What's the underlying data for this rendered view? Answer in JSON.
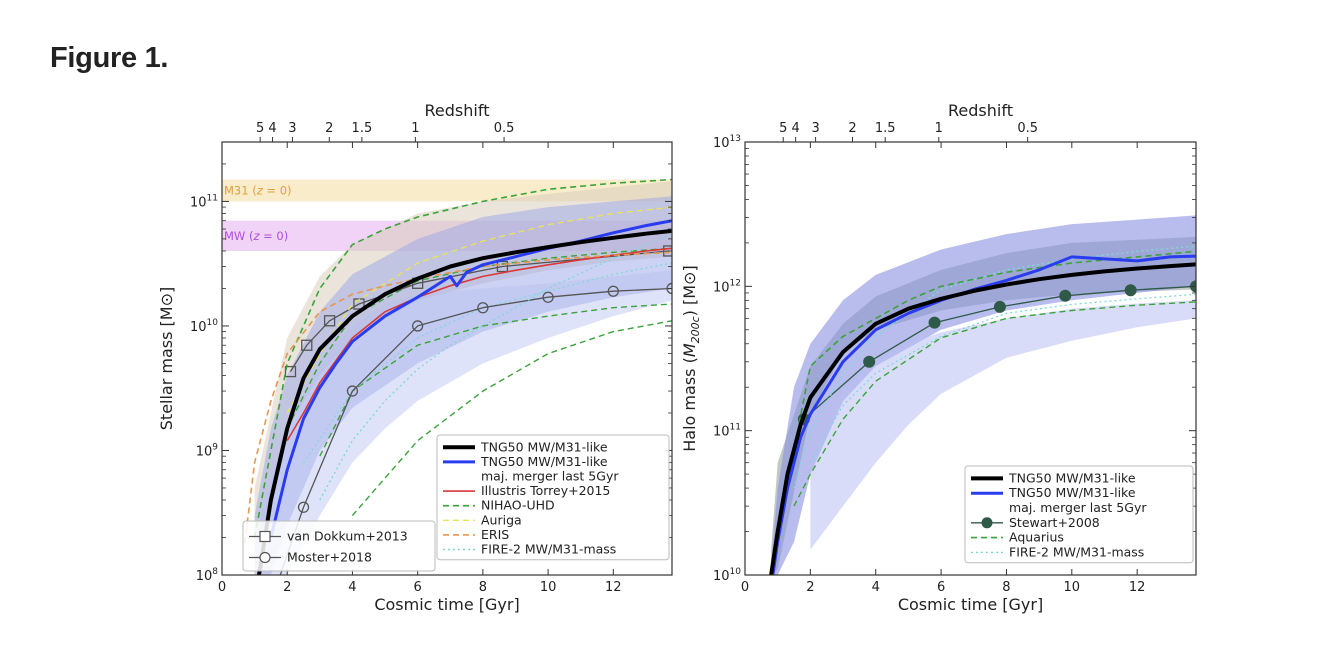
{
  "figure_label": "Figure 1.",
  "chart_data": [
    {
      "type": "line",
      "xlabel": "Cosmic time [Gyr]",
      "ylabel": "Stellar mass [M⊙]",
      "top_axis_label": "Redshift",
      "xlim": [
        0,
        13.8
      ],
      "ylim": [
        100000000.0,
        300000000000.0
      ],
      "yscale": "log",
      "x_ticks": [
        "0",
        "2",
        "4",
        "6",
        "8",
        "10",
        "12"
      ],
      "y_ticks": [
        {
          "mant": "10",
          "exp": "8"
        },
        {
          "mant": "10",
          "exp": "9"
        },
        {
          "mant": "10",
          "exp": "10"
        },
        {
          "mant": "10",
          "exp": "11"
        }
      ],
      "top_ticks": [
        "5",
        "4",
        "3",
        "2",
        "1.5",
        "1",
        "0.5"
      ],
      "bands": [
        {
          "label": "M31 (z = 0)",
          "label_main": "M31 (",
          "label_it": "z",
          "label_end": " = 0)",
          "y_range": [
            100000000000.0,
            150000000000.0
          ],
          "color": "#f5dfa6",
          "text_color": "#e0a040"
        },
        {
          "label": "MW (z = 0)",
          "label_main": "MW (",
          "label_it": "z",
          "label_end": " = 0)",
          "y_range": [
            40000000000.0,
            70000000000.0
          ],
          "color": "#e6b6f2",
          "text_color": "#b04ed8"
        }
      ],
      "series": [
        {
          "name": "TNG50 MW/M31-like",
          "color": "#000000",
          "style": "solid",
          "width": 4,
          "x": [
            1.0,
            1.5,
            2.0,
            2.5,
            3.0,
            4.0,
            5.0,
            6.0,
            7.0,
            8.0,
            9.0,
            10.0,
            11.0,
            12.0,
            13.0,
            13.8
          ],
          "y": [
            60000000.0,
            400000000.0,
            1500000000.0,
            3800000000.0,
            6500000000.0,
            12000000000.0,
            18000000000.0,
            24000000000.0,
            30000000000.0,
            35000000000.0,
            39000000000.0,
            43000000000.0,
            47000000000.0,
            51000000000.0,
            55000000000.0,
            58000000000.0
          ]
        },
        {
          "name": "TNG50 MW/M31-like maj. merger last 5Gyr",
          "color": "#2a3cf0",
          "style": "solid",
          "width": 3,
          "x": [
            1.5,
            2.0,
            2.5,
            3.0,
            3.5,
            4.0,
            5.0,
            6.0,
            7.0,
            7.2,
            7.5,
            8.0,
            9.0,
            10.0,
            11.0,
            12.0,
            13.0,
            13.8
          ],
          "y": [
            200000000.0,
            700000000.0,
            1800000000.0,
            3200000000.0,
            5000000000.0,
            7500000000.0,
            12000000000.0,
            17000000000.0,
            25000000000.0,
            21000000000.0,
            27000000000.0,
            31000000000.0,
            36000000000.0,
            42000000000.0,
            48000000000.0,
            56000000000.0,
            64000000000.0,
            70000000000.0
          ]
        },
        {
          "name": "Illustris Torrey+2015",
          "color": "#d9393a",
          "style": "solid",
          "width": 1.6,
          "x": [
            2.0,
            2.5,
            3.0,
            4.0,
            5.0,
            6.0,
            7.0,
            8.0,
            9.0,
            10.0,
            11.0,
            12.0,
            13.0,
            13.8
          ],
          "y": [
            1200000000.0,
            2000000000.0,
            3500000000.0,
            8000000000.0,
            13000000000.0,
            17000000000.0,
            21000000000.0,
            25000000000.0,
            28000000000.0,
            31000000000.0,
            34000000000.0,
            37000000000.0,
            40000000000.0,
            42000000000.0
          ]
        },
        {
          "name": "NIHAO-UHD",
          "color": "#3aa33a",
          "style": "dashed",
          "width": 1.6,
          "x": [
            1.0,
            2.0,
            3.0,
            4.0,
            5.0,
            6.0,
            8.0,
            10.0,
            12.0,
            13.8
          ],
          "y": [
            200000000.0,
            5000000000.0,
            20000000000.0,
            45000000000.0,
            60000000000.0,
            75000000000.0,
            100000000000.0,
            125000000000.0,
            140000000000.0,
            150000000000.0
          ]
        },
        {
          "name": "Auriga",
          "color": "#e8e35a",
          "style": "dashed",
          "width": 1.4,
          "x": [
            2.0,
            3.0,
            4.0,
            6.0,
            8.0,
            10.0,
            12.0,
            13.8
          ],
          "y": [
            2000000000.0,
            6000000000.0,
            15000000000.0,
            32000000000.0,
            48000000000.0,
            65000000000.0,
            80000000000.0,
            90000000000.0
          ]
        },
        {
          "name": "ERIS",
          "color": "#e89650",
          "style": "dashed",
          "width": 1.6,
          "x": [
            0.7,
            1.0,
            1.5,
            2.0,
            3.0,
            4.0,
            5.0,
            6.0,
            8.0,
            10.0,
            12.0,
            13.8
          ],
          "y": [
            180000000.0,
            800000000.0,
            2500000000.0,
            6000000000.0,
            13000000000.0,
            18000000000.0,
            21000000000.0,
            24000000000.0,
            30000000000.0,
            34000000000.0,
            37000000000.0,
            39000000000.0
          ]
        },
        {
          "name": "FIRE-2 MW/M31-mass",
          "color": "#7fd8d8",
          "style": "dotted",
          "width": 1.4,
          "x": [
            3.0,
            4.0,
            5.0,
            6.0,
            7.0,
            8.0,
            9.0,
            10.0,
            12.0,
            13.8
          ],
          "y": [
            400000000.0,
            1200000000.0,
            2500000000.0,
            4500000000.0,
            7000000000.0,
            10000000000.0,
            14000000000.0,
            20000000000.0,
            35000000000.0,
            55000000000.0
          ]
        },
        {
          "name": "van Dokkum+2013",
          "color": "#555555",
          "style": "solid",
          "width": 1.3,
          "marker": "square",
          "x": [
            2.1,
            2.6,
            3.3,
            4.2,
            6.0,
            8.6,
            13.7
          ],
          "y": [
            4300000000.0,
            7000000000.0,
            11000000000.0,
            15000000000.0,
            22000000000.0,
            30000000000.0,
            40000000000.0
          ]
        },
        {
          "name": "Moster+2018",
          "color": "#555555",
          "style": "solid",
          "width": 1.3,
          "marker": "circle",
          "x": [
            1.5,
            2.5,
            4.0,
            6.0,
            8.0,
            10.0,
            12.0,
            13.8
          ],
          "y": [
            60000000.0,
            350000000.0,
            3000000000.0,
            10000000000.0,
            14000000000.0,
            17000000000.0,
            19000000000.0,
            20000000000.0
          ]
        }
      ],
      "legend": {
        "placement": "lower-right",
        "entries": [
          {
            "lines": [
              "TNG50 MW/M31-like"
            ],
            "color": "#000000",
            "style": "solid",
            "width": 4
          },
          {
            "lines": [
              "TNG50 MW/M31-like",
              "maj. merger last 5Gyr"
            ],
            "color": "#2a3cf0",
            "style": "solid",
            "width": 3
          },
          {
            "lines": [
              "Illustris Torrey+2015"
            ],
            "color": "#d9393a",
            "style": "solid",
            "width": 1.6
          },
          {
            "lines": [
              "NIHAO-UHD"
            ],
            "color": "#3aa33a",
            "style": "dashed",
            "width": 1.6
          },
          {
            "lines": [
              "Auriga"
            ],
            "color": "#e8e35a",
            "style": "dashed",
            "width": 1.4
          },
          {
            "lines": [
              "ERIS"
            ],
            "color": "#e89650",
            "style": "dashed",
            "width": 1.6
          },
          {
            "lines": [
              "FIRE-2 MW/M31-mass"
            ],
            "color": "#7fd8d8",
            "style": "dotted",
            "width": 1.4
          }
        ]
      },
      "legend2": {
        "placement": "lower-left",
        "entries": [
          {
            "lines": [
              "van Dokkum+2013"
            ],
            "color": "#555555",
            "style": "solid",
            "width": 1.3,
            "marker": "square"
          },
          {
            "lines": [
              "Moster+2018"
            ],
            "color": "#555555",
            "style": "solid",
            "width": 1.3,
            "marker": "circle"
          }
        ]
      }
    },
    {
      "type": "line",
      "xlabel": "Cosmic time [Gyr]",
      "ylabel": "Halo mass (M200c) [M⊙]",
      "ylabel_parts": {
        "a": "Halo mass (",
        "b": "M",
        "sub": "200c",
        "c": ") [M⊙]"
      },
      "top_axis_label": "Redshift",
      "xlim": [
        0,
        13.8
      ],
      "ylim": [
        10000000000.0,
        10000000000000.0
      ],
      "yscale": "log",
      "x_ticks": [
        "0",
        "2",
        "4",
        "6",
        "8",
        "10",
        "12"
      ],
      "y_ticks": [
        {
          "mant": "10",
          "exp": "10"
        },
        {
          "mant": "10",
          "exp": "11"
        },
        {
          "mant": "10",
          "exp": "12"
        },
        {
          "mant": "10",
          "exp": "13"
        }
      ],
      "top_ticks": [
        "5",
        "4",
        "3",
        "2",
        "1.5",
        "1",
        "0.5"
      ],
      "series": [
        {
          "name": "TNG50 MW/M31-like",
          "color": "#000000",
          "style": "solid",
          "width": 4,
          "x": [
            0.8,
            1.0,
            1.3,
            1.7,
            2.0,
            3.0,
            4.0,
            5.0,
            6.0,
            7.0,
            8.0,
            9.0,
            10.0,
            11.0,
            12.0,
            13.0,
            13.8
          ],
          "y": [
            10000000000.0,
            20000000000.0,
            50000000000.0,
            110000000000.0,
            170000000000.0,
            350000000000.0,
            550000000000.0,
            700000000000.0,
            820000000000.0,
            930000000000.0,
            1030000000000.0,
            1120000000000.0,
            1200000000000.0,
            1270000000000.0,
            1330000000000.0,
            1380000000000.0,
            1420000000000.0
          ]
        },
        {
          "name": "TNG50 MW/M31-like maj. merger last 5Gyr",
          "color": "#2a3cf0",
          "style": "solid",
          "width": 3,
          "x": [
            0.85,
            1.0,
            1.3,
            1.7,
            2.0,
            3.0,
            4.0,
            5.0,
            6.0,
            7.0,
            8.0,
            9.0,
            10.0,
            11.0,
            12.0,
            13.0,
            13.8
          ],
          "y": [
            10000000000.0,
            17000000000.0,
            40000000000.0,
            90000000000.0,
            130000000000.0,
            300000000000.0,
            500000000000.0,
            650000000000.0,
            800000000000.0,
            950000000000.0,
            1100000000000.0,
            1300000000000.0,
            1600000000000.0,
            1550000000000.0,
            1500000000000.0,
            1600000000000.0,
            1620000000000.0
          ]
        },
        {
          "name": "Stewart+2008",
          "color": "#2f5a48",
          "style": "solid",
          "width": 1.3,
          "marker": "filled-circle",
          "x": [
            1.8,
            3.8,
            5.8,
            7.8,
            9.8,
            11.8,
            13.8
          ],
          "y": [
            120000000000.0,
            300000000000.0,
            560000000000.0,
            720000000000.0,
            860000000000.0,
            940000000000.0,
            1000000000000.0
          ]
        },
        {
          "name": "Aquarius",
          "color": "#3aa33a",
          "style": "dashed",
          "width": 1.6,
          "x": [
            1.0,
            2.0,
            3.0,
            4.0,
            5.0,
            6.0,
            8.0,
            10.0,
            12.0,
            13.8
          ],
          "y": [
            20000000000.0,
            280000000000.0,
            450000000000.0,
            600000000000.0,
            800000000000.0,
            1000000000000.0,
            1250000000000.0,
            1450000000000.0,
            1600000000000.0,
            1750000000000.0
          ]
        },
        {
          "name": "FIRE-2 MW/M31-mass",
          "color": "#7fd8d8",
          "style": "dotted",
          "width": 1.4,
          "x": [
            1.5,
            2.0,
            3.0,
            4.0,
            6.0,
            8.0,
            10.0,
            12.0,
            13.8
          ],
          "y": [
            40000000000.0,
            100000000000.0,
            250000000000.0,
            450000000000.0,
            950000000000.0,
            1300000000000.0,
            1550000000000.0,
            1750000000000.0,
            1900000000000.0
          ]
        }
      ],
      "legend": {
        "placement": "lower-right",
        "entries": [
          {
            "lines": [
              "TNG50 MW/M31-like"
            ],
            "color": "#000000",
            "style": "solid",
            "width": 4
          },
          {
            "lines": [
              "TNG50 MW/M31-like",
              "maj. merger last 5Gyr"
            ],
            "color": "#2a3cf0",
            "style": "solid",
            "width": 3
          },
          {
            "lines": [
              "Stewart+2008"
            ],
            "color": "#2f5a48",
            "style": "solid",
            "width": 1.3,
            "marker": "filled-circle"
          },
          {
            "lines": [
              "Aquarius"
            ],
            "color": "#3aa33a",
            "style": "dashed",
            "width": 1.6
          },
          {
            "lines": [
              "FIRE-2 MW/M31-mass"
            ],
            "color": "#7fd8d8",
            "style": "dotted",
            "width": 1.4
          }
        ]
      }
    }
  ]
}
